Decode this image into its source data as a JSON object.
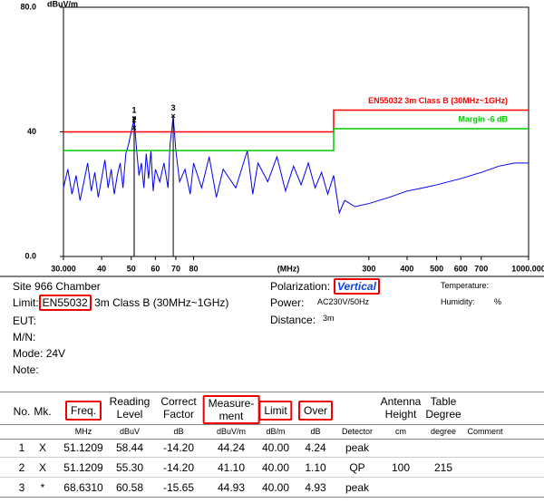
{
  "chart_data": {
    "type": "line",
    "y_unit": "dBuV/m",
    "xlabel": "(MHz)",
    "xscale": "log",
    "xlim": [
      30,
      1000
    ],
    "ylim": [
      0,
      80
    ],
    "xticks": [
      {
        "value": 30,
        "label": "30.000"
      },
      40,
      50,
      60,
      70,
      80,
      300,
      400,
      500,
      600,
      700,
      {
        "value": 1000,
        "label": "1000.000"
      }
    ],
    "yticks": [
      {
        "value": 0,
        "label": "0.0"
      },
      40,
      {
        "value": 80,
        "label": "80.0"
      }
    ],
    "grid": false,
    "series": [
      {
        "color": "#0000ee",
        "x": [
          30,
          31,
          32,
          33,
          34,
          35,
          36,
          37,
          38,
          39,
          40,
          41,
          42,
          43,
          44,
          45,
          46,
          47,
          48,
          49,
          50,
          51.1209,
          52,
          53,
          54,
          55,
          56,
          57,
          58,
          59,
          60,
          62,
          64,
          66,
          67,
          68.631,
          70,
          72,
          75,
          78,
          80,
          85,
          90,
          95,
          100,
          110,
          120,
          125,
          130,
          140,
          150,
          160,
          170,
          180,
          190,
          200,
          210,
          220,
          230,
          240,
          250,
          270,
          300,
          350,
          400,
          450,
          500,
          600,
          700,
          800,
          900,
          1000
        ],
        "values": [
          22,
          28,
          20,
          26,
          18,
          24,
          30,
          21,
          27,
          19,
          25,
          31,
          22,
          28,
          20,
          26,
          30,
          22,
          33,
          36,
          40,
          44.24,
          35,
          26,
          30,
          22,
          33,
          25,
          34,
          21,
          28,
          24,
          30,
          22,
          36,
          44.93,
          34,
          24,
          28,
          20,
          30,
          22,
          32,
          19,
          28,
          22,
          34,
          20,
          30,
          24,
          32,
          21,
          29,
          23,
          30,
          22,
          27,
          20,
          26,
          14,
          18,
          16,
          17,
          19,
          21,
          22,
          23,
          25,
          27,
          29,
          30,
          30
        ]
      },
      {
        "name": "EN55032 3m Class B (30MHz~1GHz)",
        "color": "#ff0000",
        "x": [
          30,
          230,
          230,
          1000
        ],
        "values": [
          40,
          40,
          47,
          47
        ]
      },
      {
        "name": "Margin -6 dB",
        "color": "#00cc00",
        "x": [
          30,
          230,
          230,
          1000
        ],
        "values": [
          34,
          34,
          41,
          41
        ]
      }
    ],
    "markers": [
      {
        "label": "1",
        "x": 51.1209,
        "y": 44.24
      },
      {
        "label": "2",
        "x": 51.1209,
        "y": 41.1
      },
      {
        "label": "3",
        "x": 68.631,
        "y": 44.93
      }
    ]
  },
  "info": {
    "site_label": "Site",
    "site": "966 Chamber",
    "limit_label": "Limit:",
    "limit_standard": "EN55032",
    "limit_rest": "3m Class B (30MHz~1GHz)",
    "eut_label": "EUT:",
    "mn_label": "M/N:",
    "mode_label": "Mode:",
    "mode": "24V",
    "note_label": "Note:",
    "polarization_label": "Polarization:",
    "polarization": "Vertical",
    "power_label": "Power:",
    "power": "AC230V/50Hz",
    "distance_label": "Distance:",
    "distance": "3m",
    "temperature_label": "Temperature:",
    "humidity_label": "Humidity:",
    "humidity_unit": "%"
  },
  "table": {
    "columns": [
      {
        "key": "no",
        "header": [
          "No."
        ]
      },
      {
        "key": "mk",
        "header": [
          "Mk."
        ]
      },
      {
        "key": "freq",
        "header": [
          "Freq."
        ],
        "unit": "MHz",
        "boxed": true
      },
      {
        "key": "reading",
        "header": [
          "Reading",
          "Level"
        ],
        "unit": "dBuV"
      },
      {
        "key": "factor",
        "header": [
          "Correct",
          "Factor"
        ],
        "unit": "dB"
      },
      {
        "key": "measurement",
        "header": [
          "Measure-",
          "ment"
        ],
        "unit": "dBuV/m",
        "boxed": true
      },
      {
        "key": "limit",
        "header": [
          "Limit"
        ],
        "unit": "dB/m",
        "boxed": true
      },
      {
        "key": "over",
        "header": [
          "Over"
        ],
        "unit": "dB",
        "boxed": true
      },
      {
        "key": "detector",
        "unit": "Detector"
      },
      {
        "key": "height",
        "header": [
          "Antenna",
          "Height"
        ],
        "unit": "cm"
      },
      {
        "key": "degree",
        "header": [
          "Table",
          "Degree"
        ],
        "unit": "degree"
      },
      {
        "key": "comment",
        "unit": "Comment"
      }
    ],
    "rows": [
      {
        "no": "1",
        "mk": "X",
        "freq": "51.1209",
        "reading": "58.44",
        "factor": "-14.20",
        "measurement": "44.24",
        "limit": "40.00",
        "over": "4.24",
        "detector": "peak"
      },
      {
        "no": "2",
        "mk": "X",
        "freq": "51.1209",
        "reading": "55.30",
        "factor": "-14.20",
        "measurement": "41.10",
        "limit": "40.00",
        "over": "1.10",
        "detector": "QP",
        "height": "100",
        "degree": "215"
      },
      {
        "no": "3",
        "mk": "*",
        "freq": "68.6310",
        "reading": "60.58",
        "factor": "-15.65",
        "measurement": "44.93",
        "limit": "40.00",
        "over": "4.93",
        "detector": "peak"
      }
    ]
  }
}
